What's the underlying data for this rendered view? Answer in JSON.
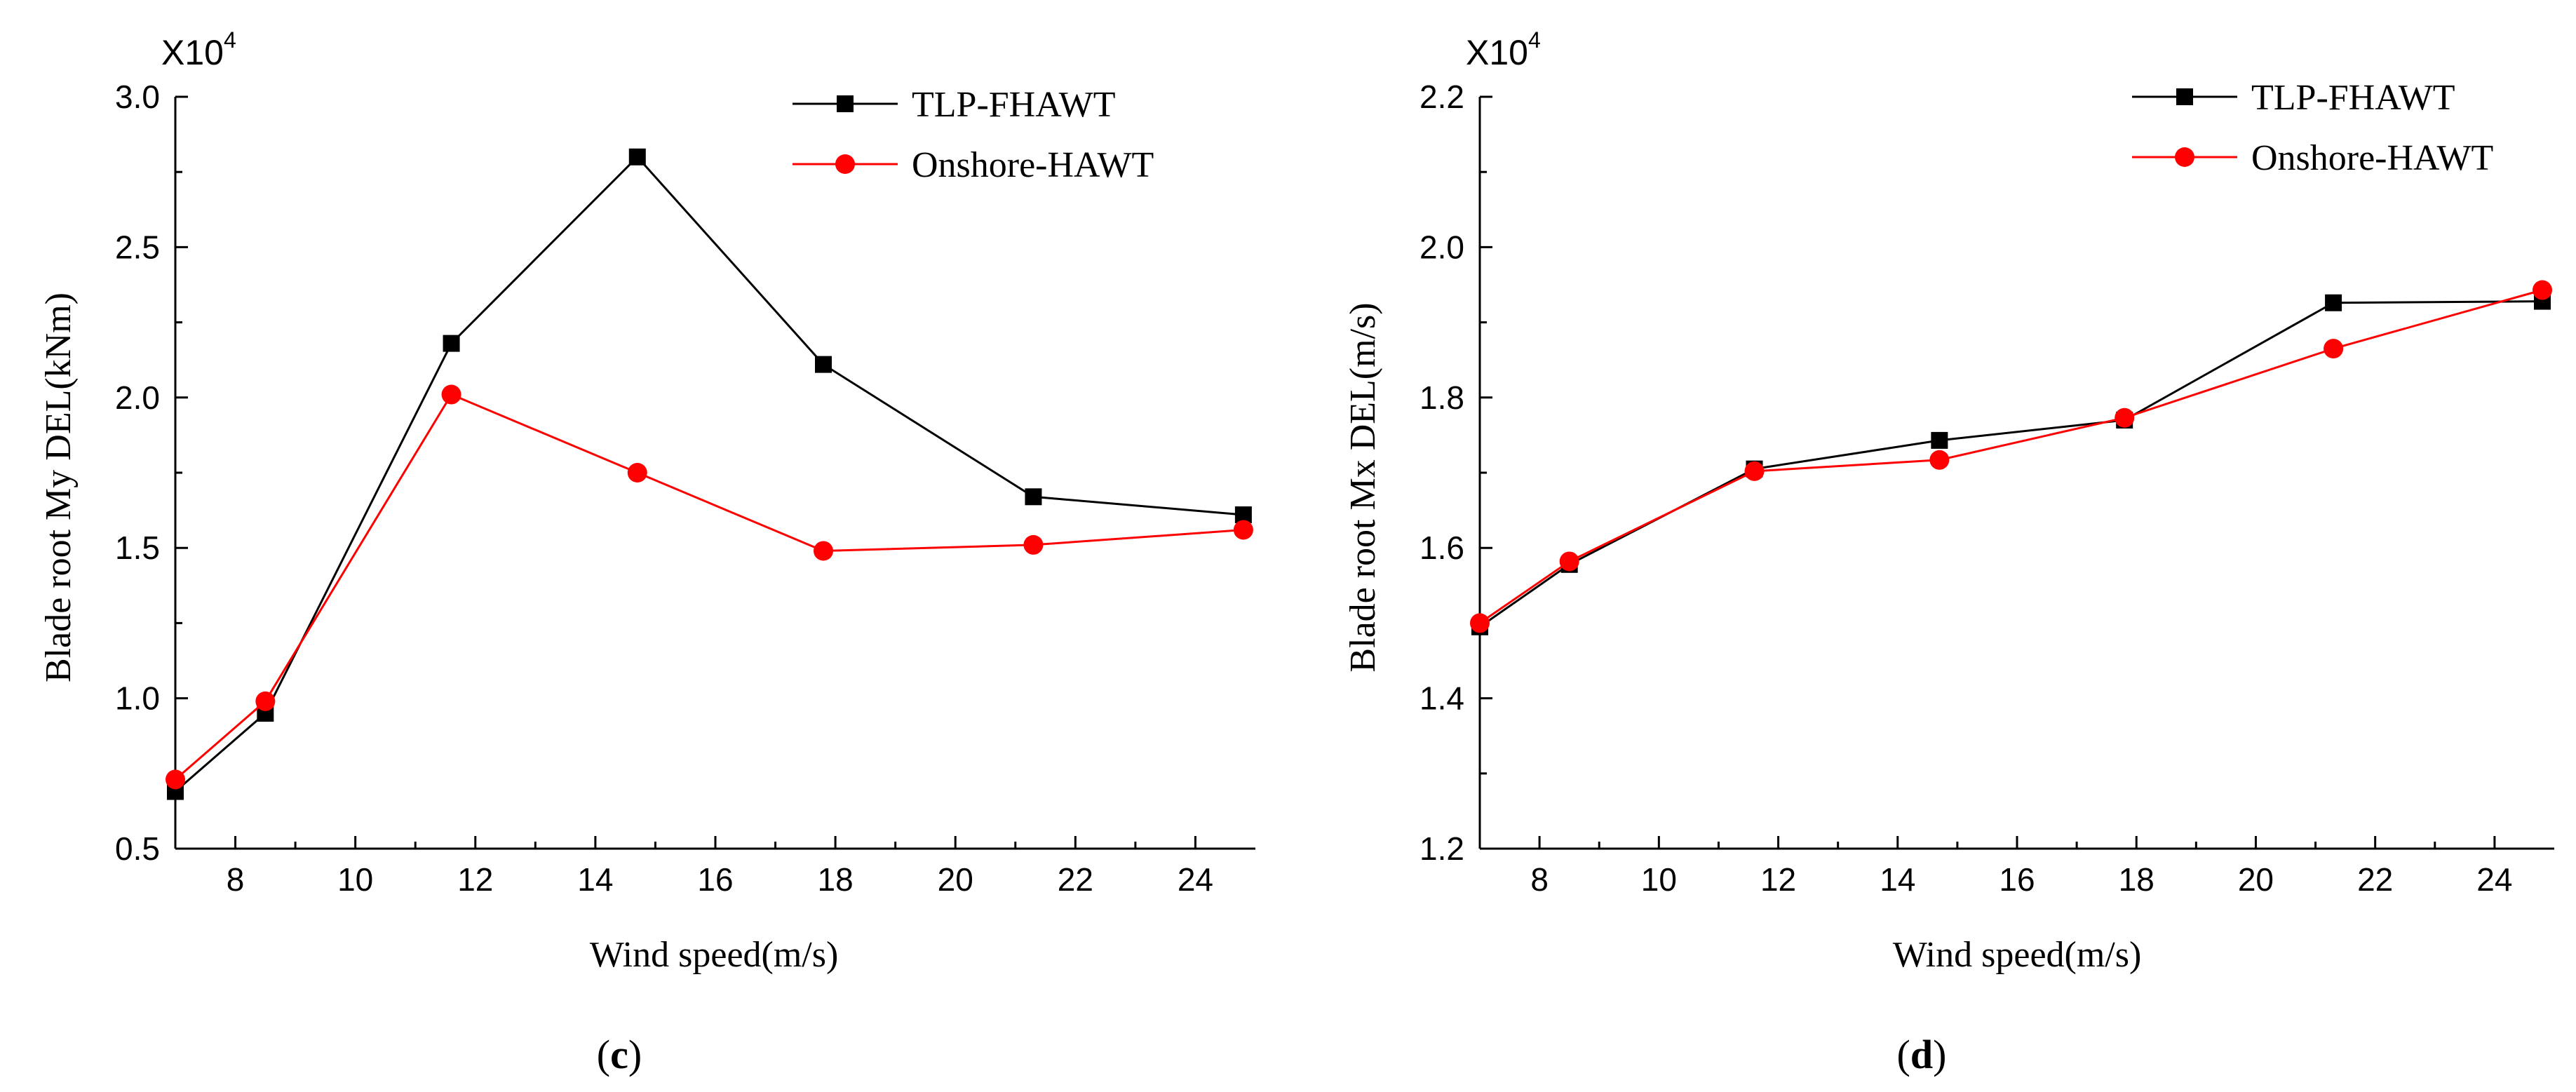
{
  "chart_data": [
    {
      "type": "line",
      "panel": "c",
      "caption_letter": "c",
      "scale_base": "X10",
      "scale_exp": "4",
      "xlabel": "Wind speed(m/s)",
      "ylabel": "Blade root My DEL(kNm)",
      "xlim": [
        7,
        25
      ],
      "ylim": [
        0.5,
        3.0
      ],
      "xticks": [
        8,
        10,
        12,
        14,
        16,
        18,
        20,
        22,
        24
      ],
      "yticks": [
        0.5,
        1.0,
        1.5,
        2.0,
        2.5,
        3.0
      ],
      "ytick_decimals": 1,
      "legend_position": "top-right",
      "series": [
        {
          "name": "TLP-FHAWT",
          "color": "#000000",
          "marker": "square",
          "x": [
            7,
            8.5,
            11.6,
            14.7,
            17.8,
            21.3,
            24.8
          ],
          "y": [
            0.69,
            0.95,
            2.18,
            2.8,
            2.11,
            1.67,
            1.61
          ]
        },
        {
          "name": "Onshore-HAWT",
          "color": "#ff0000",
          "marker": "circle",
          "x": [
            7,
            8.5,
            11.6,
            14.7,
            17.8,
            21.3,
            24.8
          ],
          "y": [
            0.73,
            0.99,
            2.01,
            1.75,
            1.49,
            1.51,
            1.56
          ]
        }
      ]
    },
    {
      "type": "line",
      "panel": "d",
      "caption_letter": "d",
      "scale_base": "X10",
      "scale_exp": "4",
      "xlabel": "Wind speed(m/s)",
      "ylabel": "Blade root Mx DEL(m/s)",
      "xlim": [
        7,
        25
      ],
      "ylim": [
        1.2,
        2.2
      ],
      "xticks": [
        8,
        10,
        12,
        14,
        16,
        18,
        20,
        22,
        24
      ],
      "yticks": [
        1.2,
        1.4,
        1.6,
        1.8,
        2.0,
        2.2
      ],
      "ytick_decimals": 1,
      "legend_position": "top-right",
      "series": [
        {
          "name": "TLP-FHAWT",
          "color": "#000000",
          "marker": "square",
          "x": [
            7,
            8.5,
            11.6,
            14.7,
            17.8,
            21.3,
            24.8
          ],
          "y": [
            1.495,
            1.578,
            1.705,
            1.743,
            1.77,
            1.926,
            1.928
          ]
        },
        {
          "name": "Onshore-HAWT",
          "color": "#ff0000",
          "marker": "circle",
          "x": [
            7,
            8.5,
            11.6,
            14.7,
            17.8,
            21.3,
            24.8
          ],
          "y": [
            1.5,
            1.582,
            1.702,
            1.717,
            1.773,
            1.865,
            1.943
          ]
        }
      ]
    }
  ]
}
